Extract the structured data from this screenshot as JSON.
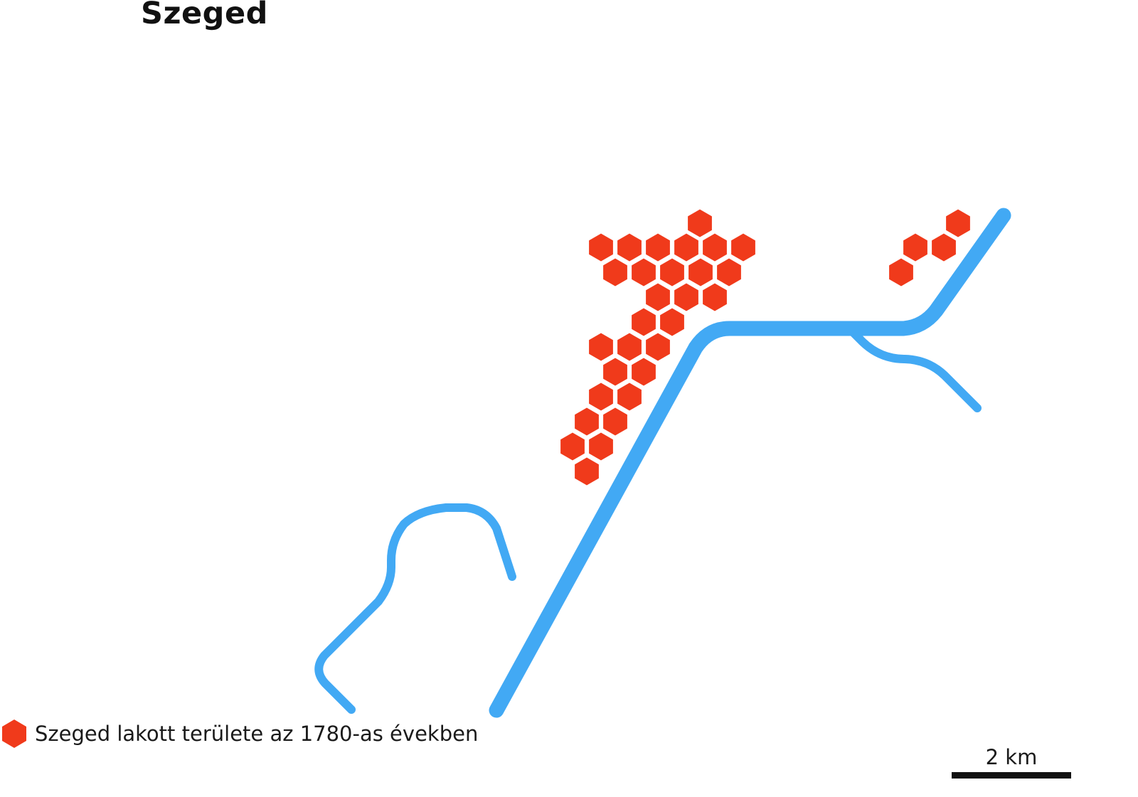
{
  "title": "Szeged",
  "colors": {
    "settlement": "#f03a1b",
    "river": "#42a9f4",
    "text": "#111111",
    "scale_bar": "#111111",
    "background": "#ffffff"
  },
  "legend": {
    "icon": "hexagon-icon",
    "label": "Szeged lakott területe az 1780-as években"
  },
  "scale": {
    "label": "2 km"
  }
}
